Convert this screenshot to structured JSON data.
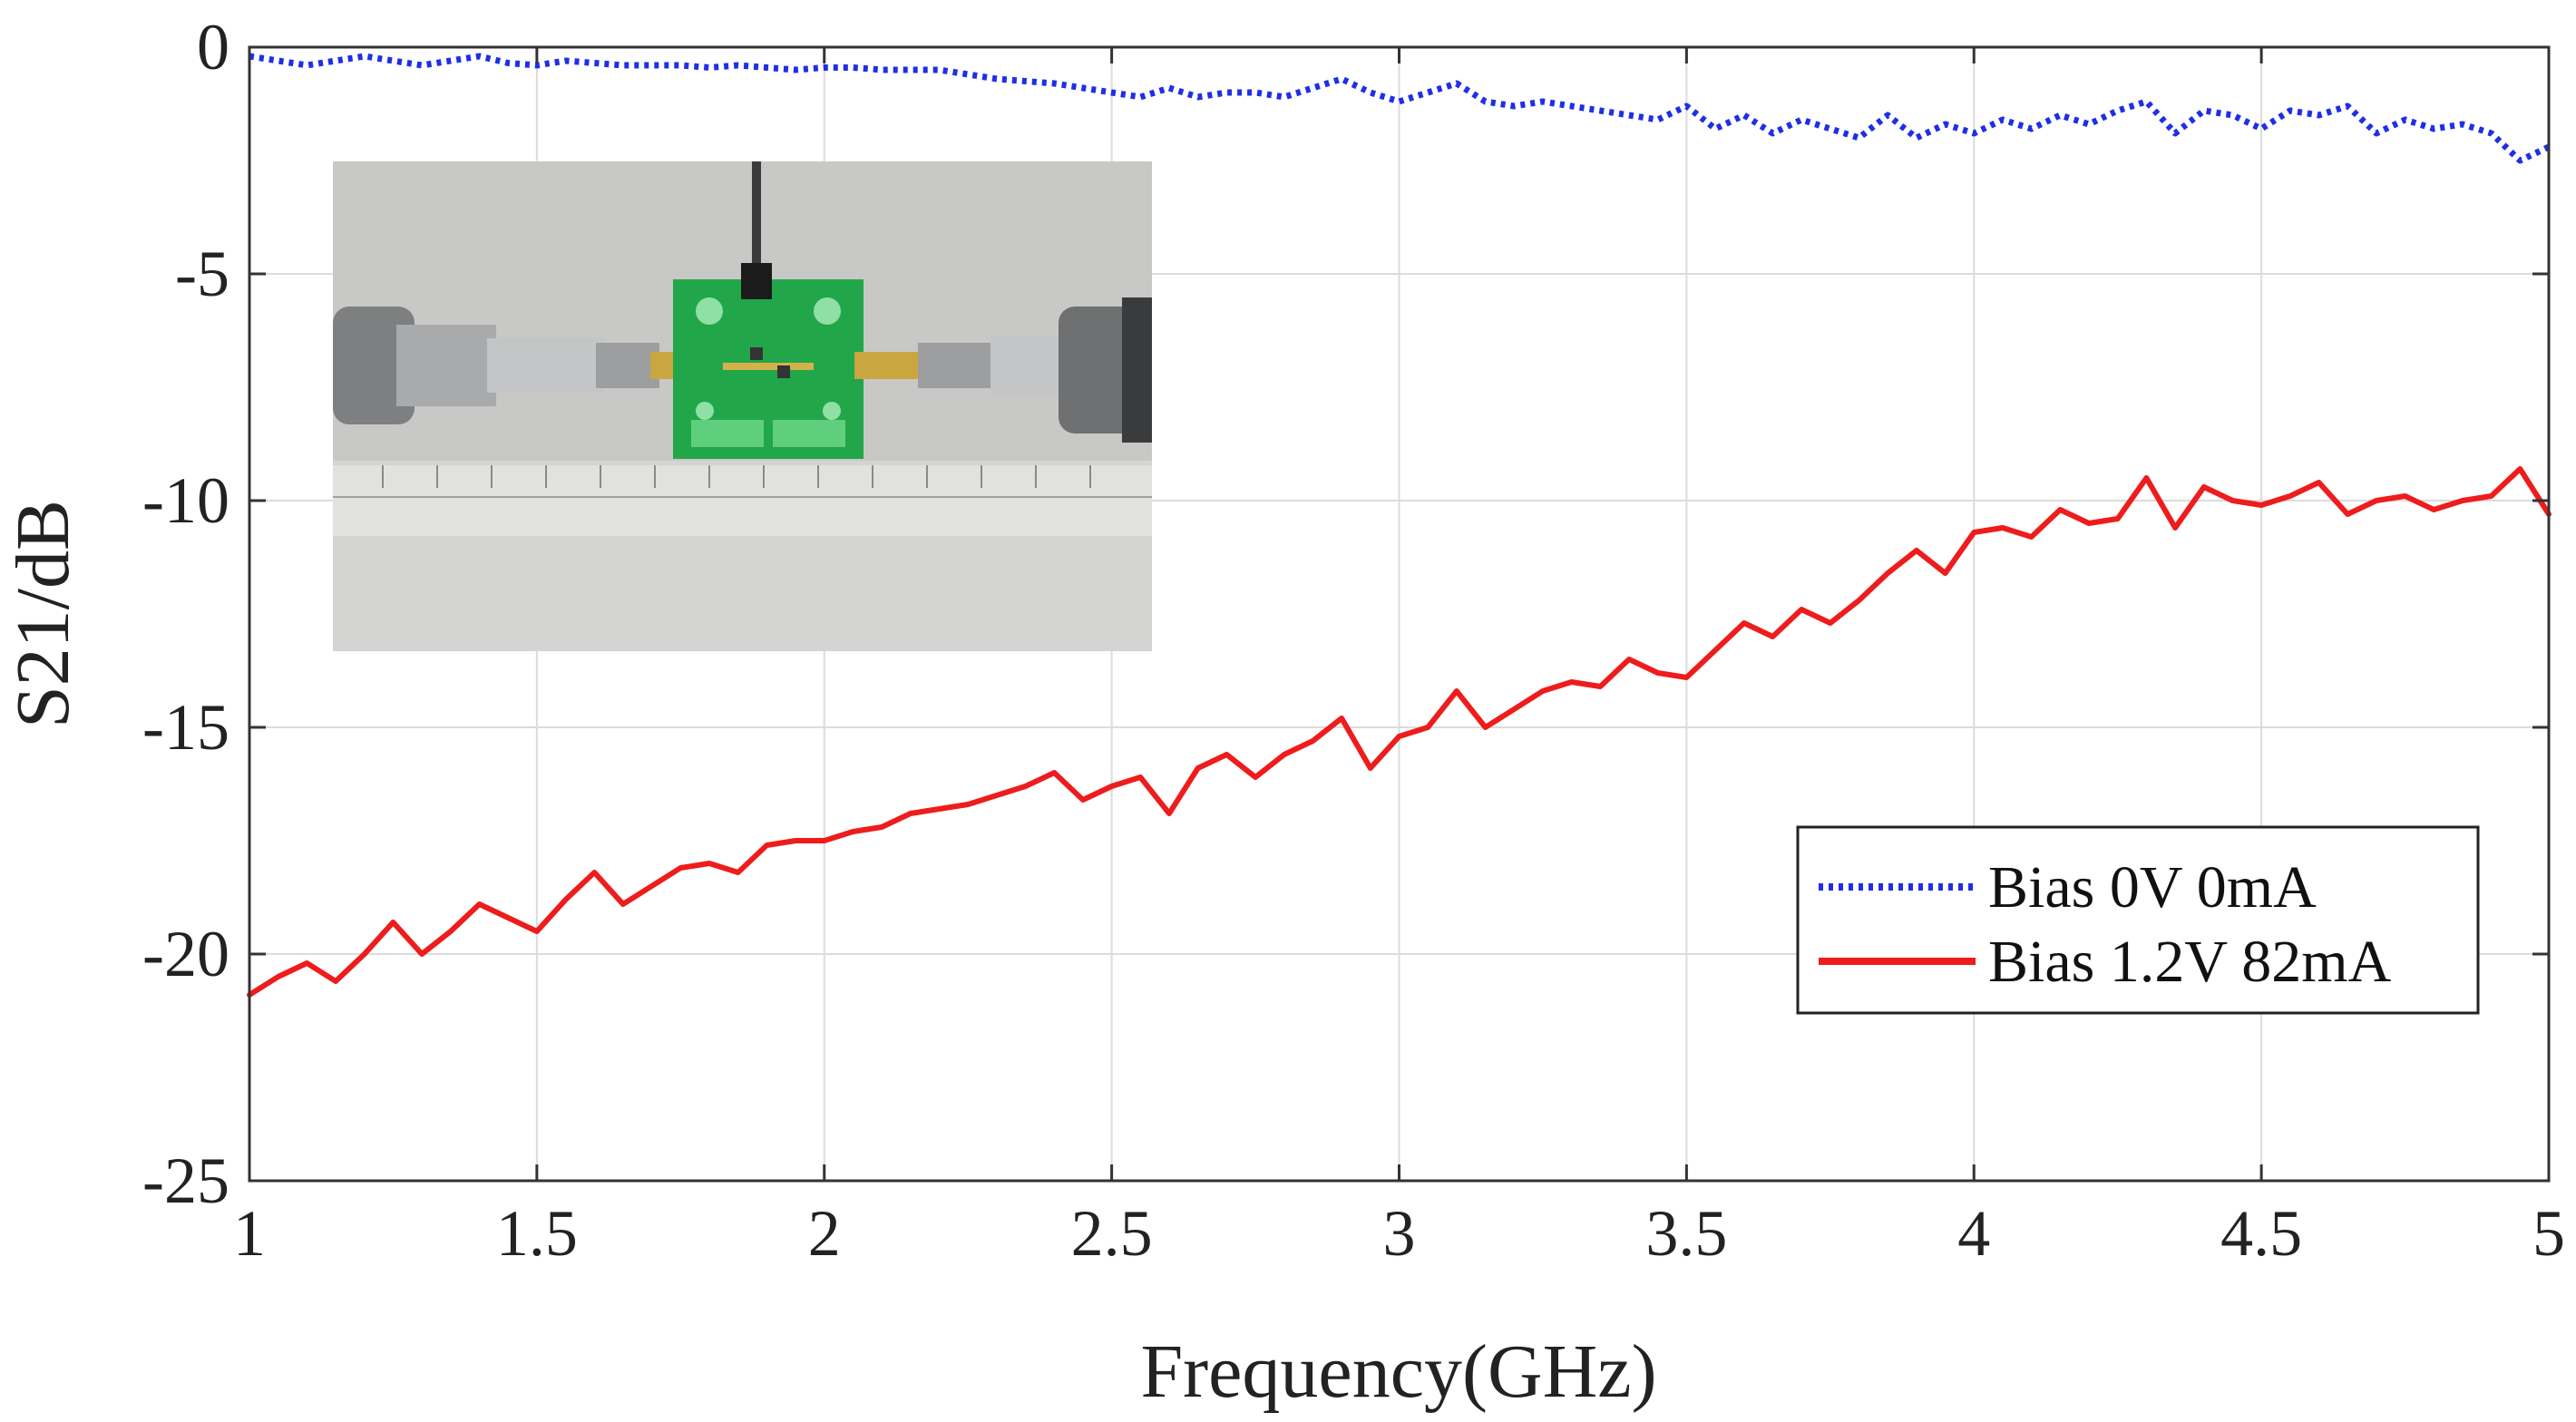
{
  "chart_data": {
    "type": "line",
    "title": "",
    "xlabel": "Frequency(GHz)",
    "ylabel": "S21/dB",
    "xlim": [
      1,
      5
    ],
    "ylim": [
      -25,
      0
    ],
    "x_ticks": [
      1,
      1.5,
      2,
      2.5,
      3,
      3.5,
      4,
      4.5,
      5
    ],
    "x_tick_labels": [
      "1",
      "1.5",
      "2",
      "2.5",
      "3",
      "3.5",
      "4",
      "4.5",
      "5"
    ],
    "y_ticks": [
      0,
      -5,
      -10,
      -15,
      -20,
      -25
    ],
    "y_tick_labels": [
      "0",
      "-5",
      "-10",
      "-15",
      "-20",
      "-25"
    ],
    "grid": true,
    "legend_position": "lower-right",
    "inset": "photo of a green PCB test fixture connected between two SMA coaxial adapters, with a ruler below",
    "series": [
      {
        "name": "Bias 0V 0mA",
        "color": "#1f2fe6",
        "style": "dotted",
        "x": [
          1.0,
          1.05,
          1.1,
          1.15,
          1.2,
          1.25,
          1.3,
          1.35,
          1.4,
          1.45,
          1.5,
          1.55,
          1.6,
          1.65,
          1.7,
          1.75,
          1.8,
          1.85,
          1.9,
          1.95,
          2.0,
          2.05,
          2.1,
          2.15,
          2.2,
          2.25,
          2.3,
          2.35,
          2.4,
          2.45,
          2.5,
          2.55,
          2.6,
          2.65,
          2.7,
          2.75,
          2.8,
          2.85,
          2.9,
          2.95,
          3.0,
          3.05,
          3.1,
          3.15,
          3.2,
          3.25,
          3.3,
          3.35,
          3.4,
          3.45,
          3.5,
          3.55,
          3.6,
          3.65,
          3.7,
          3.75,
          3.8,
          3.85,
          3.9,
          3.95,
          4.0,
          4.05,
          4.1,
          4.15,
          4.2,
          4.25,
          4.3,
          4.35,
          4.4,
          4.45,
          4.5,
          4.55,
          4.6,
          4.65,
          4.7,
          4.75,
          4.8,
          4.85,
          4.9,
          4.95,
          5.0
        ],
        "y": [
          -0.2,
          -0.3,
          -0.4,
          -0.3,
          -0.2,
          -0.3,
          -0.4,
          -0.3,
          -0.2,
          -0.35,
          -0.4,
          -0.3,
          -0.35,
          -0.4,
          -0.4,
          -0.4,
          -0.45,
          -0.4,
          -0.45,
          -0.5,
          -0.45,
          -0.45,
          -0.5,
          -0.5,
          -0.5,
          -0.6,
          -0.7,
          -0.75,
          -0.8,
          -0.9,
          -1.0,
          -1.1,
          -0.9,
          -1.1,
          -1.0,
          -1.0,
          -1.1,
          -0.9,
          -0.7,
          -1.0,
          -1.2,
          -1.0,
          -0.8,
          -1.2,
          -1.3,
          -1.2,
          -1.3,
          -1.4,
          -1.5,
          -1.6,
          -1.3,
          -1.8,
          -1.5,
          -1.9,
          -1.6,
          -1.8,
          -2.0,
          -1.5,
          -2.0,
          -1.7,
          -1.9,
          -1.6,
          -1.8,
          -1.5,
          -1.7,
          -1.4,
          -1.2,
          -1.9,
          -1.4,
          -1.5,
          -1.8,
          -1.4,
          -1.5,
          -1.3,
          -1.9,
          -1.6,
          -1.8,
          -1.7,
          -1.9,
          -2.5,
          -2.2
        ]
      },
      {
        "name": "Bias 1.2V 82mA",
        "color": "#ee1c1c",
        "style": "solid",
        "x": [
          1.0,
          1.05,
          1.1,
          1.15,
          1.2,
          1.25,
          1.3,
          1.35,
          1.4,
          1.45,
          1.5,
          1.55,
          1.6,
          1.65,
          1.7,
          1.75,
          1.8,
          1.85,
          1.9,
          1.95,
          2.0,
          2.05,
          2.1,
          2.15,
          2.2,
          2.25,
          2.3,
          2.35,
          2.4,
          2.45,
          2.5,
          2.55,
          2.6,
          2.65,
          2.7,
          2.75,
          2.8,
          2.85,
          2.9,
          2.95,
          3.0,
          3.05,
          3.1,
          3.15,
          3.2,
          3.25,
          3.3,
          3.35,
          3.4,
          3.45,
          3.5,
          3.55,
          3.6,
          3.65,
          3.7,
          3.75,
          3.8,
          3.85,
          3.9,
          3.95,
          4.0,
          4.05,
          4.1,
          4.15,
          4.2,
          4.25,
          4.3,
          4.35,
          4.4,
          4.45,
          4.5,
          4.55,
          4.6,
          4.65,
          4.7,
          4.75,
          4.8,
          4.85,
          4.9,
          4.95,
          5.0
        ],
        "y": [
          -20.9,
          -20.5,
          -20.2,
          -20.6,
          -20.0,
          -19.3,
          -20.0,
          -19.5,
          -18.9,
          -19.2,
          -19.5,
          -18.8,
          -18.2,
          -18.9,
          -18.5,
          -18.1,
          -18.0,
          -18.2,
          -17.6,
          -17.5,
          -17.5,
          -17.3,
          -17.2,
          -16.9,
          -16.8,
          -16.7,
          -16.5,
          -16.3,
          -16.0,
          -16.6,
          -16.3,
          -16.1,
          -16.9,
          -15.9,
          -15.6,
          -16.1,
          -15.6,
          -15.3,
          -14.8,
          -15.9,
          -15.2,
          -15.0,
          -14.2,
          -15.0,
          -14.6,
          -14.2,
          -14.0,
          -14.1,
          -13.5,
          -13.8,
          -13.9,
          -13.3,
          -12.7,
          -13.0,
          -12.4,
          -12.7,
          -12.2,
          -11.6,
          -11.1,
          -11.6,
          -10.7,
          -10.6,
          -10.8,
          -10.2,
          -10.5,
          -10.4,
          -9.5,
          -10.6,
          -9.7,
          -10.0,
          -10.1,
          -9.9,
          -9.6,
          -10.3,
          -10.0,
          -9.9,
          -10.2,
          -10.0,
          -9.9,
          -9.3,
          -10.3
        ]
      }
    ]
  }
}
